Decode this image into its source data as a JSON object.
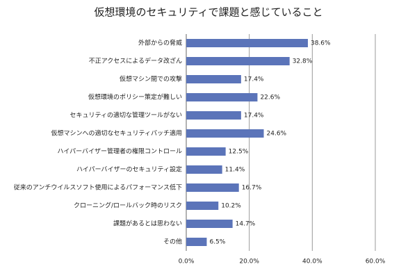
{
  "chart_data": {
    "type": "barh",
    "title": "仮想環境のセキュリティで課題と感じていること",
    "categories": [
      "外部からの脅威",
      "不正アクセスによるデータ改ざん",
      "仮想マシン間での攻撃",
      "仮想環境のポリシー策定が難しい",
      "セキュリティの適切な管理ツールがない",
      "仮想マシンへの適切なセキュリティパッチ適用",
      "ハイパーバイザー管理者の権限コントロール",
      "ハイパーバイザーのセキュリティ設定",
      "従来のアンチウイルスソフト使用によるパフォーマンス低下",
      "クローニング/ロールバック時のリスク",
      "課題があるとは思わない",
      "その他"
    ],
    "values": [
      38.6,
      32.8,
      17.4,
      22.6,
      17.4,
      24.6,
      12.5,
      11.4,
      16.7,
      10.2,
      14.7,
      6.5
    ],
    "value_labels": [
      "38.6%",
      "32.8%",
      "17.4%",
      "22.6%",
      "17.4%",
      "24.6%",
      "12.5%",
      "11.4%",
      "16.7%",
      "10.2%",
      "14.7%",
      "6.5%"
    ],
    "color": "#5b74b9",
    "xlim": [
      0,
      60
    ],
    "xticks": [
      {
        "value": 0,
        "label": "0.0%"
      },
      {
        "value": 20,
        "label": "20.0%"
      },
      {
        "value": 40,
        "label": "40.0%"
      },
      {
        "value": 60,
        "label": "60.0%"
      }
    ],
    "grid": true
  }
}
